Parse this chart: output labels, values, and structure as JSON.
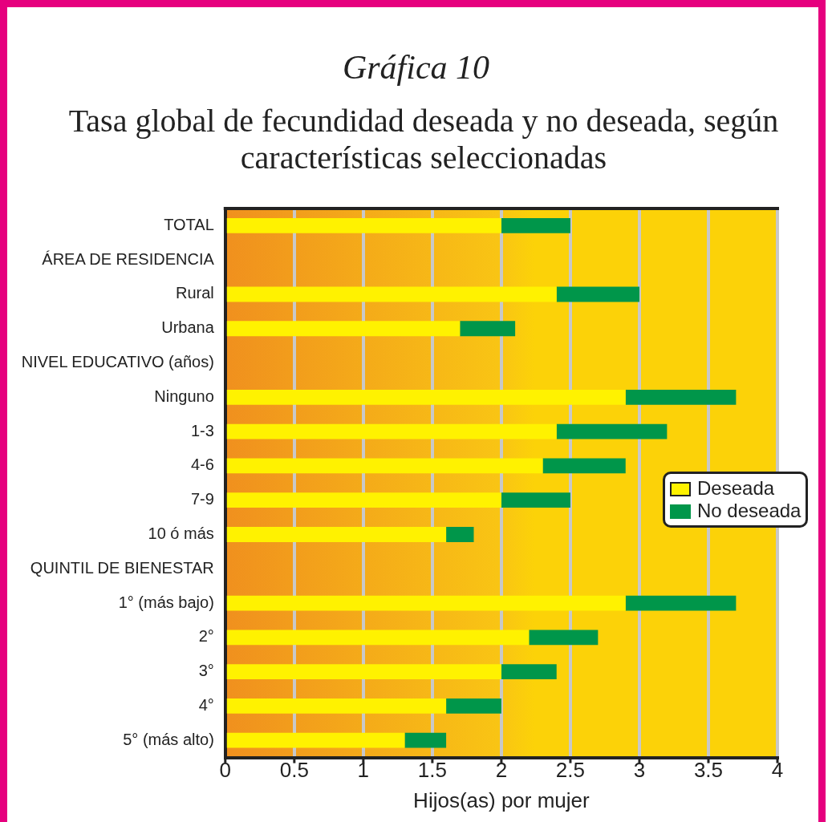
{
  "chart_data": {
    "type": "bar",
    "orientation": "horizontal",
    "stacked": true,
    "title": "Gráfica 10",
    "subtitle": "Tasa global de fecundidad deseada y no deseada, según características seleccionadas",
    "xlabel": "Hijos(as) por mujer",
    "categories": [
      "TOTAL",
      "ÁREA DE RESIDENCIA",
      "Rural",
      "Urbana",
      "NIVEL EDUCATIVO (años)",
      "Ninguno",
      "1-3",
      "4-6",
      "7-9",
      "10 ó más",
      "QUINTIL DE BIENESTAR",
      "1° (más bajo)",
      "2°",
      "3°",
      "4°",
      "5° (más alto)"
    ],
    "series": [
      {
        "name": "Deseada",
        "color": "#fff200",
        "values": [
          2.0,
          null,
          2.4,
          1.7,
          null,
          2.9,
          2.4,
          2.3,
          2.0,
          1.6,
          null,
          2.9,
          2.2,
          2.0,
          1.6,
          1.3
        ]
      },
      {
        "name": "No deseada",
        "color": "#00964a",
        "values": [
          0.5,
          null,
          0.6,
          0.4,
          null,
          0.8,
          0.8,
          0.6,
          0.5,
          0.2,
          null,
          0.8,
          0.5,
          0.4,
          0.4,
          0.3
        ]
      }
    ],
    "xlim": [
      0,
      4
    ],
    "xticks": [
      0,
      0.5,
      1,
      1.5,
      2,
      2.5,
      3,
      3.5,
      4
    ],
    "grid": "x",
    "legend": "right"
  }
}
